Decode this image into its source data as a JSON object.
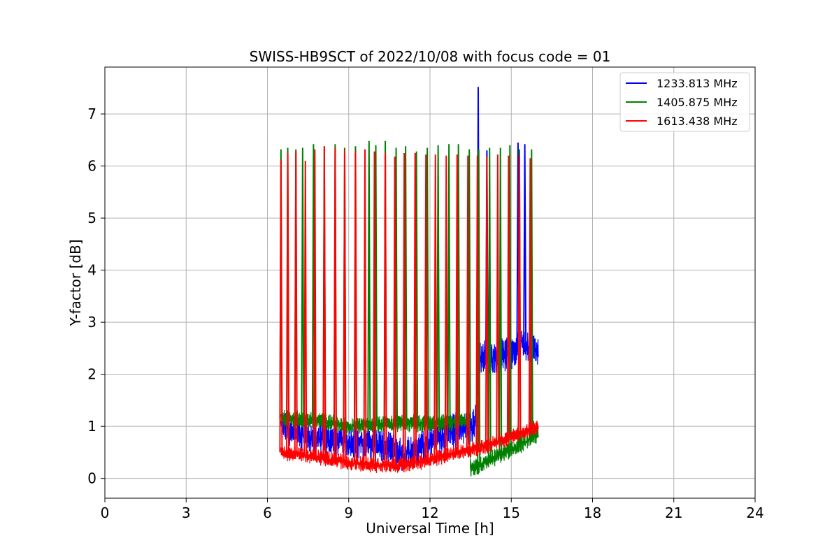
{
  "chart_data": {
    "type": "line",
    "title": "SWISS-HB9SCT of 2022/10/08 with focus code = 01",
    "xlabel": "Universal Time [h]",
    "ylabel": "Y-factor [dB]",
    "xlim": [
      0,
      24
    ],
    "ylim": [
      -0.38,
      7.9
    ],
    "xticks": [
      0,
      3,
      6,
      9,
      12,
      15,
      18,
      21,
      24
    ],
    "yticks": [
      0,
      1,
      2,
      3,
      4,
      5,
      6,
      7
    ],
    "grid": true,
    "legend_position": "top-right",
    "series": [
      {
        "name": "1233.813 MHz",
        "color": "#0000ff",
        "x_start": 6.5,
        "x_end": 16.0,
        "baseline": [
          [
            6.5,
            1.0
          ],
          [
            7.5,
            0.8
          ],
          [
            9.0,
            0.7
          ],
          [
            10.0,
            0.65
          ],
          [
            11.0,
            0.45
          ],
          [
            12.0,
            0.7
          ],
          [
            13.0,
            0.95
          ],
          [
            13.6,
            1.0
          ],
          [
            13.75,
            1.3
          ],
          [
            13.85,
            2.3
          ],
          [
            15.0,
            2.4
          ],
          [
            15.4,
            2.6
          ],
          [
            16.0,
            2.4
          ]
        ],
        "noise": 0.35,
        "spikes": [
          [
            13.78,
            7.52
          ],
          [
            14.1,
            6.3
          ],
          [
            15.25,
            6.45
          ],
          [
            15.5,
            6.42
          ]
        ]
      },
      {
        "name": "1405.875 MHz",
        "color": "#008000",
        "x_start": 6.5,
        "x_end": 16.0,
        "baseline": [
          [
            6.5,
            1.15
          ],
          [
            8.0,
            1.1
          ],
          [
            9.0,
            1.0
          ],
          [
            10.5,
            1.05
          ],
          [
            12.0,
            1.05
          ],
          [
            13.45,
            1.1
          ],
          [
            13.5,
            0.15
          ],
          [
            14.0,
            0.3
          ],
          [
            15.0,
            0.55
          ],
          [
            16.0,
            0.85
          ]
        ],
        "noise": 0.18,
        "spikes": [
          [
            6.5,
            6.32
          ],
          [
            6.75,
            6.35
          ],
          [
            7.05,
            6.32
          ],
          [
            7.3,
            6.35
          ],
          [
            7.7,
            6.42
          ],
          [
            8.1,
            6.38
          ],
          [
            8.5,
            6.42
          ],
          [
            8.85,
            6.35
          ],
          [
            9.25,
            6.38
          ],
          [
            9.75,
            6.48
          ],
          [
            10.0,
            6.4
          ],
          [
            10.35,
            6.48
          ],
          [
            10.75,
            6.35
          ],
          [
            11.1,
            6.38
          ],
          [
            11.5,
            6.28
          ],
          [
            11.9,
            6.35
          ],
          [
            12.3,
            6.4
          ],
          [
            12.7,
            6.42
          ],
          [
            13.05,
            6.42
          ],
          [
            13.45,
            6.32
          ],
          [
            13.8,
            6.32
          ],
          [
            14.2,
            6.35
          ],
          [
            14.6,
            6.35
          ],
          [
            14.95,
            6.4
          ],
          [
            15.3,
            6.32
          ],
          [
            15.75,
            6.32
          ]
        ]
      },
      {
        "name": "1613.438 MHz",
        "color": "#ff0000",
        "x_start": 6.5,
        "x_end": 16.0,
        "baseline": [
          [
            6.5,
            0.5
          ],
          [
            8.0,
            0.4
          ],
          [
            9.0,
            0.3
          ],
          [
            10.0,
            0.25
          ],
          [
            11.0,
            0.25
          ],
          [
            12.0,
            0.35
          ],
          [
            13.0,
            0.5
          ],
          [
            14.0,
            0.6
          ],
          [
            15.0,
            0.8
          ],
          [
            16.0,
            1.0
          ]
        ],
        "noise": 0.16,
        "spikes": [
          [
            6.5,
            6.12
          ],
          [
            6.75,
            6.25
          ],
          [
            7.05,
            6.28
          ],
          [
            7.4,
            6.1
          ],
          [
            7.75,
            6.32
          ],
          [
            8.1,
            6.38
          ],
          [
            8.5,
            6.35
          ],
          [
            8.85,
            6.3
          ],
          [
            9.25,
            6.28
          ],
          [
            9.6,
            6.32
          ],
          [
            9.95,
            6.28
          ],
          [
            10.35,
            6.25
          ],
          [
            10.7,
            6.18
          ],
          [
            11.05,
            6.25
          ],
          [
            11.45,
            6.25
          ],
          [
            11.85,
            6.22
          ],
          [
            12.2,
            6.22
          ],
          [
            12.6,
            6.2
          ],
          [
            13.0,
            6.22
          ],
          [
            13.4,
            6.2
          ],
          [
            13.75,
            6.2
          ],
          [
            14.1,
            6.18
          ],
          [
            14.5,
            6.22
          ],
          [
            14.9,
            6.2
          ],
          [
            15.3,
            6.2
          ],
          [
            15.7,
            6.15
          ]
        ]
      }
    ]
  }
}
